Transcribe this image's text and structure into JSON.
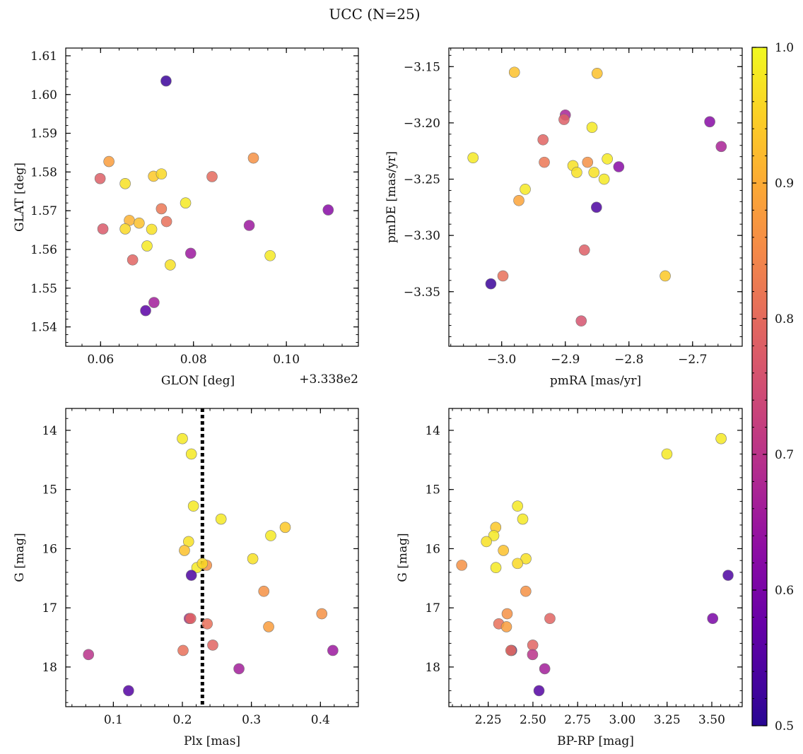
{
  "figure": {
    "title": "UCC (N=25)"
  },
  "colorbar": {
    "cmap": "plasma",
    "range": [
      0.5,
      1.0
    ],
    "ticks": [
      0.5,
      0.6,
      0.7,
      0.8,
      0.9,
      1.0
    ],
    "tick_labels": [
      "0.5",
      "0.6",
      "0.7",
      "0.8",
      "0.9",
      "1.0"
    ]
  },
  "chart_data": [
    {
      "type": "scatter",
      "title": "",
      "xlabel": "GLON [deg]",
      "ylabel": "GLAT [deg]",
      "offset_text": "+3.338e2",
      "xlim": [
        0.0525,
        0.1155
      ],
      "ylim": [
        1.535,
        1.612
      ],
      "xticks": [
        0.06,
        0.08,
        0.1
      ],
      "xtick_labels": [
        "0.06",
        "0.08",
        "0.10"
      ],
      "yticks": [
        1.54,
        1.55,
        1.56,
        1.57,
        1.58,
        1.59,
        1.6,
        1.61
      ],
      "ytick_labels": [
        "1.54",
        "1.55",
        "1.56",
        "1.57",
        "1.58",
        "1.59",
        "1.60",
        "1.61"
      ],
      "y_inverted": false,
      "points": [
        {
          "x": 0.0741,
          "y": 1.6035,
          "c": 0.52
        },
        {
          "x": 0.0618,
          "y": 1.5827,
          "c": 0.88
        },
        {
          "x": 0.0599,
          "y": 1.5783,
          "c": 0.78
        },
        {
          "x": 0.0653,
          "y": 1.577,
          "c": 0.97
        },
        {
          "x": 0.0714,
          "y": 1.5789,
          "c": 0.94
        },
        {
          "x": 0.0731,
          "y": 1.5795,
          "c": 0.96
        },
        {
          "x": 0.084,
          "y": 1.5788,
          "c": 0.8
        },
        {
          "x": 0.0929,
          "y": 1.5836,
          "c": 0.86
        },
        {
          "x": 0.0783,
          "y": 1.572,
          "c": 0.98
        },
        {
          "x": 0.0731,
          "y": 1.5705,
          "c": 0.82
        },
        {
          "x": 0.0662,
          "y": 1.5675,
          "c": 0.91
        },
        {
          "x": 0.0683,
          "y": 1.5668,
          "c": 0.93
        },
        {
          "x": 0.0742,
          "y": 1.5672,
          "c": 0.81
        },
        {
          "x": 0.0605,
          "y": 1.5653,
          "c": 0.77
        },
        {
          "x": 0.0653,
          "y": 1.5653,
          "c": 0.96
        },
        {
          "x": 0.071,
          "y": 1.5652,
          "c": 0.97
        },
        {
          "x": 0.109,
          "y": 1.5702,
          "c": 0.62
        },
        {
          "x": 0.092,
          "y": 1.5662,
          "c": 0.65
        },
        {
          "x": 0.07,
          "y": 1.5609,
          "c": 0.98
        },
        {
          "x": 0.0794,
          "y": 1.559,
          "c": 0.65
        },
        {
          "x": 0.0965,
          "y": 1.5584,
          "c": 0.98
        },
        {
          "x": 0.0669,
          "y": 1.5573,
          "c": 0.79
        },
        {
          "x": 0.075,
          "y": 1.556,
          "c": 0.97
        },
        {
          "x": 0.0715,
          "y": 1.5463,
          "c": 0.66
        },
        {
          "x": 0.0697,
          "y": 1.5442,
          "c": 0.56
        }
      ]
    },
    {
      "type": "scatter",
      "title": "",
      "xlabel": "pmRA [mas/yr]",
      "ylabel": "pmDE [mas/yr]",
      "xlim": [
        -3.083,
        -2.622
      ],
      "ylim": [
        -3.3985,
        -3.1335
      ],
      "xticks": [
        -3.0,
        -2.9,
        -2.8,
        -2.7
      ],
      "xtick_labels": [
        "−3.0",
        "−2.9",
        "−2.8",
        "−2.7"
      ],
      "yticks": [
        -3.35,
        -3.3,
        -3.25,
        -3.2,
        -3.15
      ],
      "ytick_labels": [
        "−3.35",
        "−3.30",
        "−3.25",
        "−3.20",
        "−3.15"
      ],
      "y_inverted": false,
      "points": [
        {
          "x": -2.98,
          "y": -3.155,
          "c": 0.93
        },
        {
          "x": -2.85,
          "y": -3.156,
          "c": 0.93
        },
        {
          "x": -2.9,
          "y": -3.193,
          "c": 0.67
        },
        {
          "x": -2.902,
          "y": -3.197,
          "c": 0.78
        },
        {
          "x": -2.858,
          "y": -3.204,
          "c": 0.98
        },
        {
          "x": -2.673,
          "y": -3.199,
          "c": 0.62
        },
        {
          "x": -2.655,
          "y": -3.221,
          "c": 0.67
        },
        {
          "x": -3.045,
          "y": -3.231,
          "c": 0.98
        },
        {
          "x": -2.935,
          "y": -3.215,
          "c": 0.79
        },
        {
          "x": -2.933,
          "y": -3.235,
          "c": 0.82
        },
        {
          "x": -2.865,
          "y": -3.235,
          "c": 0.86
        },
        {
          "x": -2.834,
          "y": -3.232,
          "c": 0.98
        },
        {
          "x": -2.888,
          "y": -3.238,
          "c": 0.97
        },
        {
          "x": -2.882,
          "y": -3.244,
          "c": 0.97
        },
        {
          "x": -2.855,
          "y": -3.244,
          "c": 0.97
        },
        {
          "x": -2.816,
          "y": -3.239,
          "c": 0.62
        },
        {
          "x": -2.839,
          "y": -3.25,
          "c": 0.98
        },
        {
          "x": -2.963,
          "y": -3.259,
          "c": 0.98
        },
        {
          "x": -2.973,
          "y": -3.269,
          "c": 0.89
        },
        {
          "x": -2.851,
          "y": -3.275,
          "c": 0.54
        },
        {
          "x": -2.87,
          "y": -3.313,
          "c": 0.78
        },
        {
          "x": -2.743,
          "y": -3.336,
          "c": 0.94
        },
        {
          "x": -2.998,
          "y": -3.336,
          "c": 0.81
        },
        {
          "x": -3.017,
          "y": -3.343,
          "c": 0.52
        },
        {
          "x": -2.875,
          "y": -3.376,
          "c": 0.76
        }
      ]
    },
    {
      "type": "scatter",
      "title": "",
      "xlabel": "Plx [mas]",
      "ylabel": "G [mag]",
      "xlim": [
        0.031,
        0.455
      ],
      "ylim": [
        13.63,
        18.67
      ],
      "xticks": [
        0.1,
        0.2,
        0.3,
        0.4
      ],
      "xtick_labels": [
        "0.1",
        "0.2",
        "0.3",
        "0.4"
      ],
      "yticks": [
        14,
        15,
        16,
        17,
        18
      ],
      "ytick_labels": [
        "14",
        "15",
        "16",
        "17",
        "18"
      ],
      "y_inverted": true,
      "vline": {
        "x": 0.229,
        "style": "dotted"
      },
      "points": [
        {
          "x": 0.2,
          "y": 14.14,
          "c": 0.98
        },
        {
          "x": 0.213,
          "y": 14.4,
          "c": 0.98
        },
        {
          "x": 0.216,
          "y": 15.28,
          "c": 0.98
        },
        {
          "x": 0.256,
          "y": 15.5,
          "c": 0.98
        },
        {
          "x": 0.349,
          "y": 15.64,
          "c": 0.94
        },
        {
          "x": 0.328,
          "y": 15.78,
          "c": 0.98
        },
        {
          "x": 0.209,
          "y": 15.88,
          "c": 0.97
        },
        {
          "x": 0.203,
          "y": 16.03,
          "c": 0.93
        },
        {
          "x": 0.302,
          "y": 16.17,
          "c": 0.97
        },
        {
          "x": 0.235,
          "y": 16.28,
          "c": 0.86
        },
        {
          "x": 0.221,
          "y": 16.32,
          "c": 0.98
        },
        {
          "x": 0.229,
          "y": 16.25,
          "c": 0.96
        },
        {
          "x": 0.213,
          "y": 16.45,
          "c": 0.54
        },
        {
          "x": 0.318,
          "y": 16.72,
          "c": 0.86
        },
        {
          "x": 0.21,
          "y": 17.18,
          "c": 0.68
        },
        {
          "x": 0.212,
          "y": 17.18,
          "c": 0.79
        },
        {
          "x": 0.402,
          "y": 17.1,
          "c": 0.86
        },
        {
          "x": 0.236,
          "y": 17.27,
          "c": 0.81
        },
        {
          "x": 0.325,
          "y": 17.32,
          "c": 0.88
        },
        {
          "x": 0.244,
          "y": 17.63,
          "c": 0.79
        },
        {
          "x": 0.201,
          "y": 17.72,
          "c": 0.81
        },
        {
          "x": 0.418,
          "y": 17.72,
          "c": 0.65
        },
        {
          "x": 0.064,
          "y": 17.79,
          "c": 0.7
        },
        {
          "x": 0.282,
          "y": 18.03,
          "c": 0.66
        },
        {
          "x": 0.122,
          "y": 18.4,
          "c": 0.55
        }
      ]
    },
    {
      "type": "scatter",
      "title": "",
      "xlabel": "BP-RP [mag]",
      "ylabel": "G [mag]",
      "xlim": [
        2.03,
        3.67
      ],
      "ylim": [
        13.63,
        18.67
      ],
      "xticks": [
        2.25,
        2.5,
        2.75,
        3.0,
        3.25,
        3.5
      ],
      "xtick_labels": [
        "2.25",
        "2.50",
        "2.75",
        "3.00",
        "3.25",
        "3.50"
      ],
      "yticks": [
        14,
        15,
        16,
        17,
        18
      ],
      "ytick_labels": [
        "14",
        "15",
        "16",
        "17",
        "18"
      ],
      "y_inverted": true,
      "points": [
        {
          "x": 3.552,
          "y": 14.14,
          "c": 0.98
        },
        {
          "x": 3.249,
          "y": 14.4,
          "c": 0.98
        },
        {
          "x": 2.414,
          "y": 15.28,
          "c": 0.98
        },
        {
          "x": 2.443,
          "y": 15.5,
          "c": 0.98
        },
        {
          "x": 2.292,
          "y": 15.64,
          "c": 0.94
        },
        {
          "x": 2.281,
          "y": 15.78,
          "c": 0.98
        },
        {
          "x": 2.24,
          "y": 15.88,
          "c": 0.97
        },
        {
          "x": 2.335,
          "y": 16.03,
          "c": 0.93
        },
        {
          "x": 2.461,
          "y": 16.17,
          "c": 0.97
        },
        {
          "x": 2.414,
          "y": 16.25,
          "c": 0.96
        },
        {
          "x": 2.102,
          "y": 16.28,
          "c": 0.86
        },
        {
          "x": 2.293,
          "y": 16.32,
          "c": 0.98
        },
        {
          "x": 3.591,
          "y": 16.45,
          "c": 0.54
        },
        {
          "x": 2.46,
          "y": 16.72,
          "c": 0.86
        },
        {
          "x": 2.356,
          "y": 17.1,
          "c": 0.86
        },
        {
          "x": 2.595,
          "y": 17.18,
          "c": 0.79
        },
        {
          "x": 3.505,
          "y": 17.18,
          "c": 0.6
        },
        {
          "x": 2.309,
          "y": 17.27,
          "c": 0.81
        },
        {
          "x": 2.352,
          "y": 17.32,
          "c": 0.88
        },
        {
          "x": 2.499,
          "y": 17.63,
          "c": 0.79
        },
        {
          "x": 2.381,
          "y": 17.72,
          "c": 0.54
        },
        {
          "x": 2.377,
          "y": 17.72,
          "c": 0.81
        },
        {
          "x": 2.498,
          "y": 17.79,
          "c": 0.7
        },
        {
          "x": 2.566,
          "y": 18.03,
          "c": 0.66
        },
        {
          "x": 2.534,
          "y": 18.4,
          "c": 0.55
        }
      ]
    }
  ]
}
